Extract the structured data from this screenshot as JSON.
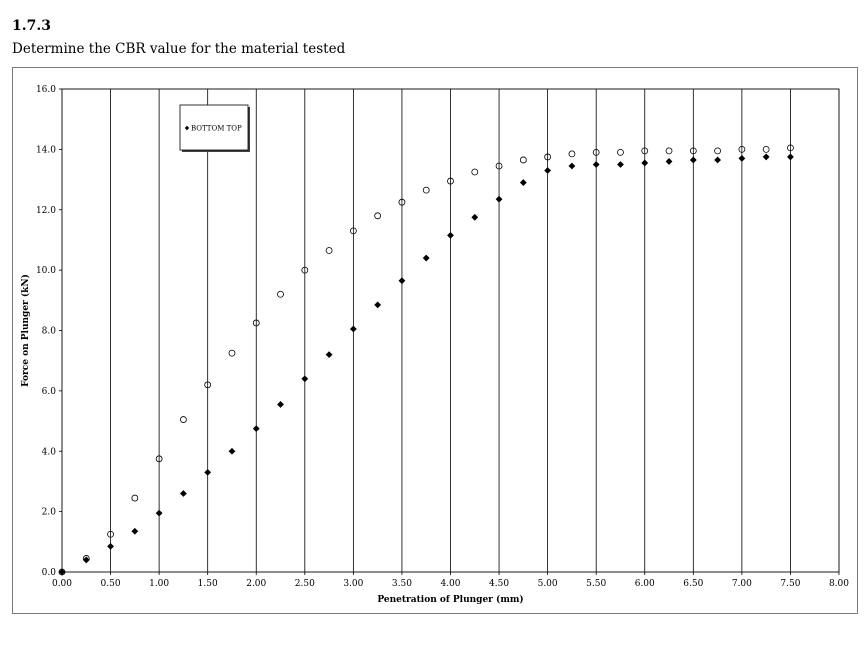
{
  "heading": "1.7.3",
  "instruction": "Determine the CBR value for the material tested",
  "chart_data": {
    "type": "scatter",
    "xlabel": "Penetration of Plunger (mm)",
    "ylabel": "Force on Plunger (kN)",
    "xlim": [
      0,
      8
    ],
    "ylim": [
      0,
      16
    ],
    "x_ticks": [
      "0.00",
      "0.50",
      "1.00",
      "1.50",
      "2.00",
      "2.50",
      "3.00",
      "3.50",
      "4.00",
      "4.50",
      "5.00",
      "5.50",
      "6.00",
      "6.50",
      "7.00",
      "7.50",
      "8.00"
    ],
    "y_ticks": [
      "0.0",
      "2.0",
      "4.0",
      "6.0",
      "8.0",
      "10.0",
      "12.0",
      "14.0",
      "16.0"
    ],
    "vertical_gridlines": true,
    "horizontal_gridlines": false,
    "legend_position": "top-left",
    "legend_text": "BOTTOM TOP",
    "series": [
      {
        "name": "BOTTOM",
        "marker": "filled-diamond",
        "color": "#000000",
        "x": [
          0,
          0.25,
          0.5,
          0.75,
          1.0,
          1.25,
          1.5,
          1.75,
          2.0,
          2.25,
          2.5,
          2.75,
          3.0,
          3.25,
          3.5,
          3.75,
          4.0,
          4.25,
          4.5,
          4.75,
          5.0,
          5.25,
          5.5,
          5.75,
          6.0,
          6.25,
          6.5,
          6.75,
          7.0,
          7.25,
          7.5
        ],
        "y": [
          0,
          0.4,
          0.85,
          1.35,
          1.95,
          2.6,
          3.3,
          4.0,
          4.75,
          5.55,
          6.4,
          7.2,
          8.05,
          8.85,
          9.65,
          10.4,
          11.15,
          11.75,
          12.35,
          12.9,
          13.3,
          13.45,
          13.5,
          13.5,
          13.55,
          13.6,
          13.65,
          13.65,
          13.7,
          13.75,
          13.75
        ]
      },
      {
        "name": "TOP",
        "marker": "open-circle",
        "color": "#000000",
        "x": [
          0,
          0.25,
          0.5,
          0.75,
          1.0,
          1.25,
          1.5,
          1.75,
          2.0,
          2.25,
          2.5,
          2.75,
          3.0,
          3.25,
          3.5,
          3.75,
          4.0,
          4.25,
          4.5,
          4.75,
          5.0,
          5.25,
          5.5,
          5.75,
          6.0,
          6.25,
          6.5,
          6.75,
          7.0,
          7.25,
          7.5
        ],
        "y": [
          0,
          0.45,
          1.25,
          2.45,
          3.75,
          5.05,
          6.2,
          7.25,
          8.25,
          9.2,
          10.0,
          10.65,
          11.3,
          11.8,
          12.25,
          12.65,
          12.95,
          13.25,
          13.45,
          13.65,
          13.75,
          13.85,
          13.9,
          13.9,
          13.95,
          13.95,
          13.95,
          13.95,
          14.0,
          14.0,
          14.05
        ]
      }
    ]
  }
}
